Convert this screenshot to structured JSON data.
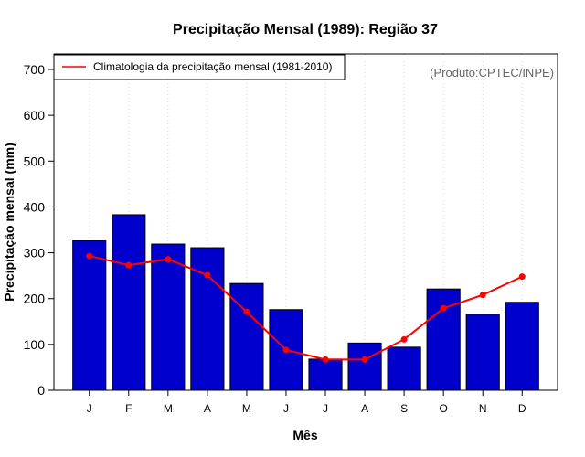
{
  "chart_data": {
    "type": "bar",
    "title": "Precipitação Mensal (1989): Região 37",
    "xlabel": "Mês",
    "ylabel": "Precipitação mensal (mm)",
    "ylim": [
      0,
      700
    ],
    "yticks": [
      0,
      100,
      200,
      300,
      400,
      500,
      600,
      700
    ],
    "categories": [
      "J",
      "F",
      "M",
      "A",
      "M",
      "J",
      "J",
      "A",
      "S",
      "O",
      "N",
      "D"
    ],
    "series": [
      {
        "name": "Precipitação mensal (1989)",
        "type": "bar",
        "color": "#0000cc",
        "values": [
          326,
          383,
          319,
          311,
          233,
          176,
          68,
          103,
          94,
          221,
          166,
          192
        ]
      },
      {
        "name": "Climatologia da precipitação mensal (1981-2010)",
        "type": "line",
        "color": "#ff0000",
        "values": [
          293,
          273,
          286,
          251,
          171,
          88,
          67,
          67,
          111,
          179,
          208,
          248
        ]
      }
    ],
    "legend": {
      "position": "top-left",
      "entries": [
        "Climatologia da precipitação mensal (1981-2010)"
      ]
    },
    "annotation": "(Produto:CPTEC/INPE)",
    "grid": "vertical dotted"
  }
}
